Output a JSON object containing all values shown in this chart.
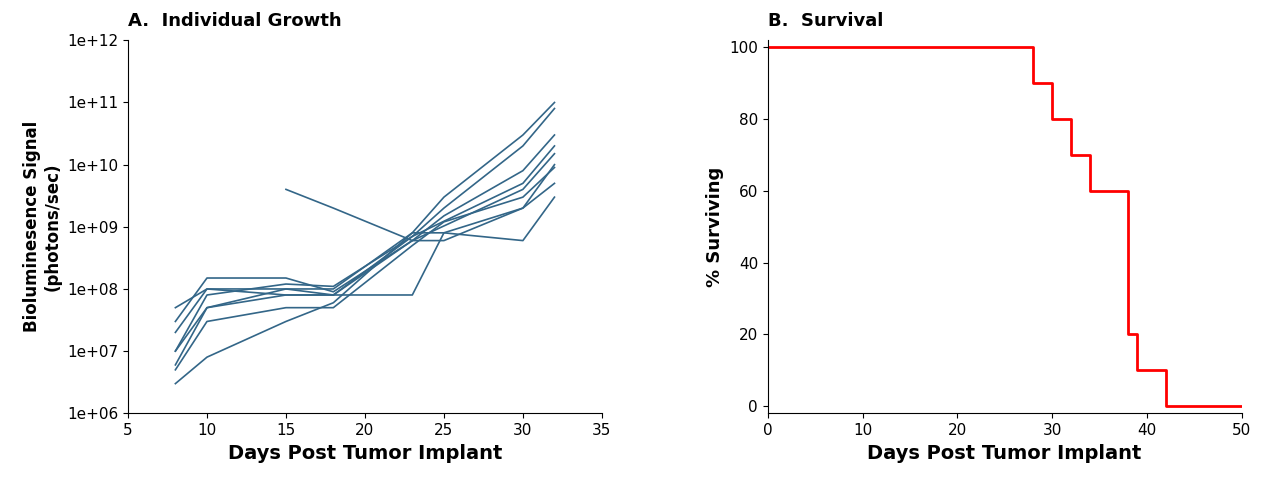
{
  "title_a": "A.  Individual Growth",
  "title_b": "B.  Survival",
  "xlabel_a": "Days Post Tumor Implant",
  "ylabel_a": "Bioluminesence Signal\n(photons/sec)",
  "xlabel_b": "Days Post Tumor Implant",
  "ylabel_b": "% Surviving",
  "line_color_a": "#336688",
  "line_color_b": "#ff0000",
  "xlim_a": [
    5,
    35
  ],
  "ylim_a": [
    1000000.0,
    1000000000000.0
  ],
  "xlim_b": [
    0,
    50
  ],
  "ylim_b": [
    -2,
    102
  ],
  "xticks_a": [
    5,
    10,
    15,
    20,
    25,
    30,
    35
  ],
  "xticks_b": [
    0,
    10,
    20,
    30,
    40,
    50
  ],
  "yticks_b": [
    0,
    20,
    40,
    60,
    80,
    100
  ],
  "growth_curves": [
    {
      "x": [
        8,
        10,
        15,
        18,
        23,
        25,
        30,
        32
      ],
      "y": [
        6000000.0,
        50000000.0,
        100000000.0,
        100000000.0,
        800000000.0,
        3000000000.0,
        30000000000.0,
        100000000000.0
      ]
    },
    {
      "x": [
        8,
        10,
        15,
        18,
        23,
        25,
        30,
        32
      ],
      "y": [
        10000000.0,
        80000000.0,
        120000000.0,
        110000000.0,
        700000000.0,
        2000000000.0,
        20000000000.0,
        80000000000.0
      ]
    },
    {
      "x": [
        8,
        10,
        15,
        18,
        23,
        25,
        30,
        32
      ],
      "y": [
        30000000.0,
        150000000.0,
        150000000.0,
        90000000.0,
        600000000.0,
        1500000000.0,
        8000000000.0,
        30000000000.0
      ]
    },
    {
      "x": [
        8,
        10,
        15,
        18,
        23,
        30,
        32
      ],
      "y": [
        50000000.0,
        100000000.0,
        100000000.0,
        80000000.0,
        700000000.0,
        5000000000.0,
        20000000000.0
      ]
    },
    {
      "x": [
        8,
        10,
        15,
        18,
        23,
        30,
        32
      ],
      "y": [
        20000000.0,
        100000000.0,
        80000000.0,
        80000000.0,
        600000000.0,
        4000000000.0,
        15000000000.0
      ]
    },
    {
      "x": [
        8,
        10,
        15,
        18,
        23,
        25,
        30,
        32
      ],
      "y": [
        5000000.0,
        30000000.0,
        50000000.0,
        50000000.0,
        500000000.0,
        1200000000.0,
        3000000000.0,
        9000000000.0
      ]
    },
    {
      "x": [
        8,
        10,
        15,
        18,
        23,
        25,
        30,
        32
      ],
      "y": [
        10000000.0,
        50000000.0,
        80000000.0,
        80000000.0,
        80000000.0,
        800000000.0,
        2000000000.0,
        5000000000.0
      ]
    },
    {
      "x": [
        15,
        18,
        23,
        25,
        30,
        32
      ],
      "y": [
        4000000000.0,
        2000000000.0,
        600000000.0,
        600000000.0,
        2000000000.0,
        10000000000.0
      ]
    },
    {
      "x": [
        8,
        10,
        15,
        18,
        23,
        25,
        30,
        32
      ],
      "y": [
        3000000.0,
        8000000.0,
        30000000.0,
        60000000.0,
        800000000.0,
        800000000.0,
        600000000.0,
        3000000000.0
      ]
    }
  ],
  "survival_steps": {
    "x": [
      0,
      28,
      28,
      30,
      30,
      32,
      32,
      34,
      34,
      38,
      38,
      39,
      39,
      40,
      40,
      42,
      42,
      43,
      43,
      50
    ],
    "y": [
      100,
      100,
      90,
      90,
      80,
      80,
      70,
      70,
      60,
      60,
      20,
      20,
      10,
      10,
      10,
      10,
      0,
      0,
      0,
      0
    ]
  }
}
